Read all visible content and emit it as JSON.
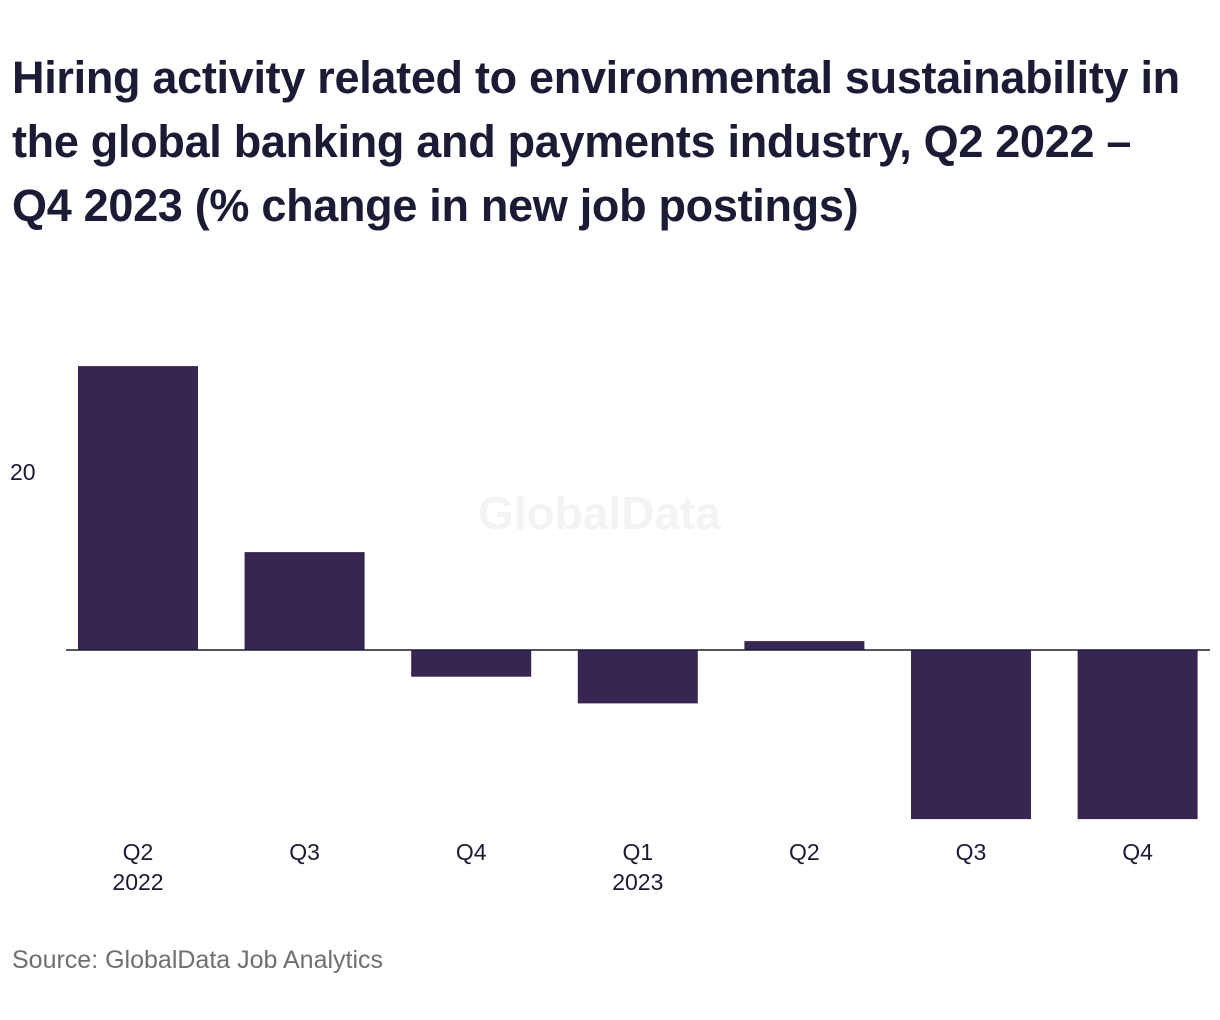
{
  "title": "Hiring activity related to environmental sustainability in the global banking and payments industry, Q2 2022 – Q4 2023 (% change in new job postings)",
  "source": "Source: GlobalData Job Analytics",
  "watermark": "GlobalData",
  "colors": {
    "bar": "#372651",
    "axis": "#1b1b36",
    "text": "#1b1b36"
  },
  "chart_data": {
    "type": "bar",
    "title": "Hiring activity related to environmental sustainability in the global banking and payments industry, Q2 2022 – Q4 2023 (% change in new job postings)",
    "categories": [
      {
        "label": "Q2",
        "sublabel": "2022"
      },
      {
        "label": "Q3",
        "sublabel": ""
      },
      {
        "label": "Q4",
        "sublabel": ""
      },
      {
        "label": "Q1",
        "sublabel": "2023"
      },
      {
        "label": "Q2",
        "sublabel": ""
      },
      {
        "label": "Q3",
        "sublabel": ""
      },
      {
        "label": "Q4",
        "sublabel": ""
      }
    ],
    "values": [
      31.9,
      11.0,
      -3.0,
      -6.0,
      1.0,
      -19.0,
      -19.0
    ],
    "yticks": [
      20
    ],
    "ylim": [
      -20,
      32
    ],
    "xlabel": "",
    "ylabel": "",
    "grid": false,
    "legend": "none"
  }
}
